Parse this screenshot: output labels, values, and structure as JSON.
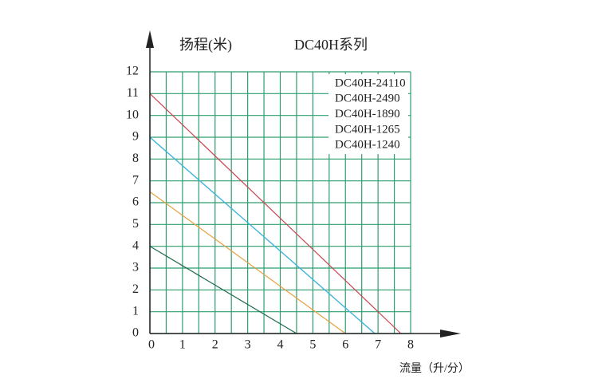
{
  "chart_data": {
    "type": "line",
    "title": "DC40H系列",
    "y_label": "扬程(米)",
    "x_label": "流量（升/分）",
    "xlim": [
      0,
      8
    ],
    "ylim": [
      0,
      12
    ],
    "xticks": [
      0,
      1,
      2,
      3,
      4,
      5,
      6,
      7,
      8
    ],
    "yticks": [
      0,
      1,
      2,
      3,
      4,
      5,
      6,
      7,
      8,
      9,
      10,
      11,
      12
    ],
    "grid": true,
    "grid_color": "#2e9e6e",
    "legend": "upper right",
    "series": [
      {
        "name": "DC40H-24110",
        "color": "#c8434f",
        "x": [
          0,
          7.7
        ],
        "values": [
          11,
          0
        ]
      },
      {
        "name": "DC40H-2490",
        "color": "#3fb4dc",
        "x": [
          0,
          6.9
        ],
        "values": [
          9,
          0
        ]
      },
      {
        "name": "DC40H-1890",
        "color": "#3fb4dc",
        "x": [
          0,
          6.9
        ],
        "values": [
          9,
          0
        ]
      },
      {
        "name": "DC40H-1265",
        "color": "#e8a040",
        "x": [
          0,
          6.0
        ],
        "values": [
          6.5,
          0
        ]
      },
      {
        "name": "DC40H-1240",
        "color": "#1e6b4e",
        "x": [
          0,
          4.5
        ],
        "values": [
          4,
          0
        ]
      }
    ]
  }
}
